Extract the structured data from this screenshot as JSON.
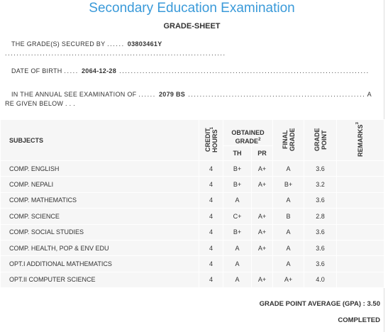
{
  "header": {
    "title": "Secondary Education Examination",
    "subtitle": "GRADE-SHEET"
  },
  "info": [
    {
      "label": "THE GRADE(S) SECURED BY ",
      "lead": "...... ",
      "value": "03803461Y",
      "trail": " ............................................................................"
    },
    {
      "label": "DATE OF BIRTH ",
      "lead": "..... ",
      "value": "2064-12-28",
      "trail": " ......................................................................................"
    },
    {
      "label": "IN THE ANNUAL SEE EXAMINATION OF ",
      "lead": "...... ",
      "value": "2079 BS",
      "trail": " .............................................................",
      "tail": "ARE GIVEN BELOW . . ."
    }
  ],
  "table": {
    "columns": {
      "subjects": "SUBJECTS",
      "credit_hours": "CREDIT HOURS",
      "credit_hours_note": "1",
      "obtained_grade_1": "OBTAINED",
      "obtained_grade_2": "GRADE",
      "obtained_grade_note": "2",
      "th": "TH",
      "pr": "PR",
      "final_grade": "FINAL GRADE",
      "grade_point": "GRADE POINT",
      "remarks": "REMARKS",
      "remarks_note": "3"
    },
    "rows": [
      [
        "COMP. ENGLISH",
        "4",
        "B+",
        "A+",
        "A",
        "3.6"
      ],
      [
        "COMP. NEPALI",
        "4",
        "B+",
        "A+",
        "B+",
        "3.2"
      ],
      [
        "COMP. MATHEMATICS",
        "4",
        "A",
        null,
        "A",
        "3.6"
      ],
      [
        "COMP. SCIENCE",
        "4",
        "C+",
        "A+",
        "B",
        "2.8"
      ],
      [
        "COMP. SOCIAL STUDIES",
        "4",
        "B+",
        "A+",
        "A",
        "3.6"
      ],
      [
        "COMP. HEALTH, POP & ENV EDU",
        "4",
        "A",
        "A+",
        "A",
        "3.6"
      ],
      [
        "OPT.I ADDITIONAL MATHEMATICS",
        "4",
        "A",
        null,
        "A",
        "3.6"
      ],
      [
        "OPT.II COMPUTER SCIENCE",
        "4",
        "A",
        "A+",
        "A+",
        "4.0"
      ]
    ]
  },
  "footer": {
    "gpa_label": "GRADE POINT AVERAGE (GPA) :",
    "gpa": "3.50",
    "status": "COMPLETED"
  }
}
